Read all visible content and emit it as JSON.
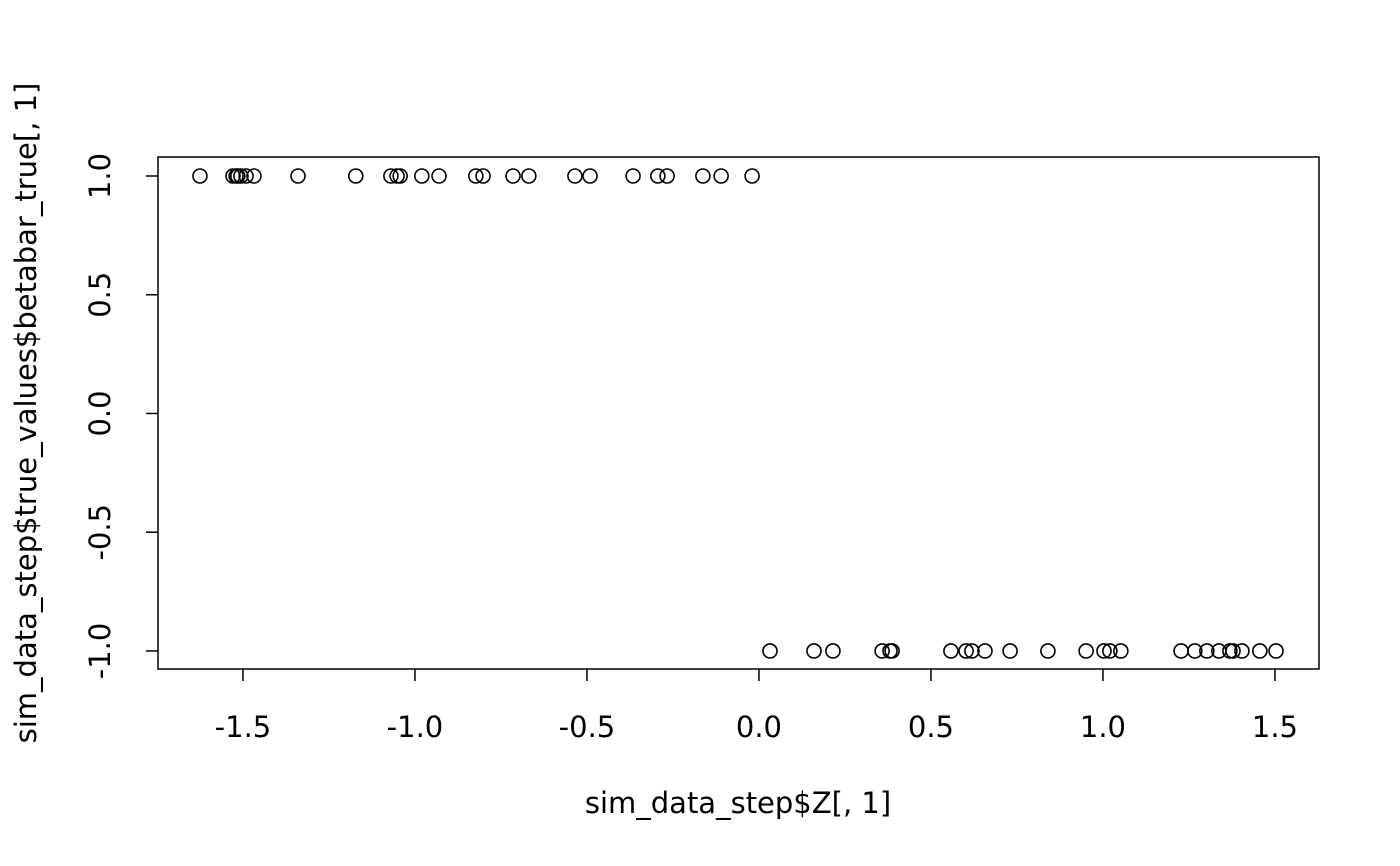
{
  "chart_data": {
    "type": "scatter",
    "x_label": "sim_data_step$Z[, 1]",
    "y_label": "sim_data_step$true_values$betabar_true[, 1]",
    "x": [
      -1.625,
      -1.529,
      -1.52,
      -1.515,
      -1.506,
      -1.491,
      -1.468,
      -1.34,
      -1.172,
      -1.07,
      -1.052,
      -1.043,
      -0.98,
      -0.93,
      -0.823,
      -0.802,
      -0.715,
      -0.669,
      -0.535,
      -0.491,
      -0.366,
      -0.294,
      -0.267,
      -0.163,
      -0.11,
      -0.02,
      0.032,
      0.16,
      0.215,
      0.358,
      0.381,
      0.387,
      0.558,
      0.602,
      0.619,
      0.657,
      0.73,
      0.84,
      0.951,
      1.003,
      1.02,
      1.052,
      1.227,
      1.267,
      1.302,
      1.337,
      1.369,
      1.378,
      1.404,
      1.456,
      1.503
    ],
    "values": [
      1,
      1,
      1,
      1,
      1,
      1,
      1,
      1,
      1,
      1,
      1,
      1,
      1,
      1,
      1,
      1,
      1,
      1,
      1,
      1,
      1,
      1,
      1,
      1,
      1,
      1,
      -1,
      -1,
      -1,
      -1,
      -1,
      -1,
      -1,
      -1,
      -1,
      -1,
      -1,
      -1,
      -1,
      -1,
      -1,
      -1,
      -1,
      -1,
      -1,
      -1,
      -1,
      -1,
      -1,
      -1,
      -1
    ],
    "color": "#000000",
    "xlim": [
      -1.747,
      1.628
    ],
    "ylim": [
      -1.076,
      1.08
    ],
    "xticks": [
      {
        "value": -1.5,
        "label": "-1.5"
      },
      {
        "value": -1,
        "label": "-1.0"
      },
      -0.5,
      {
        "value": 0,
        "label": "0.0"
      },
      0.5,
      {
        "value": 1,
        "label": "1.0"
      },
      1.5
    ],
    "yticks": [
      {
        "value": -1,
        "label": "-1.0"
      },
      -0.5,
      {
        "value": 0,
        "label": "0.0"
      },
      0.5,
      {
        "value": 1,
        "label": "1.0"
      }
    ],
    "grid": false
  }
}
